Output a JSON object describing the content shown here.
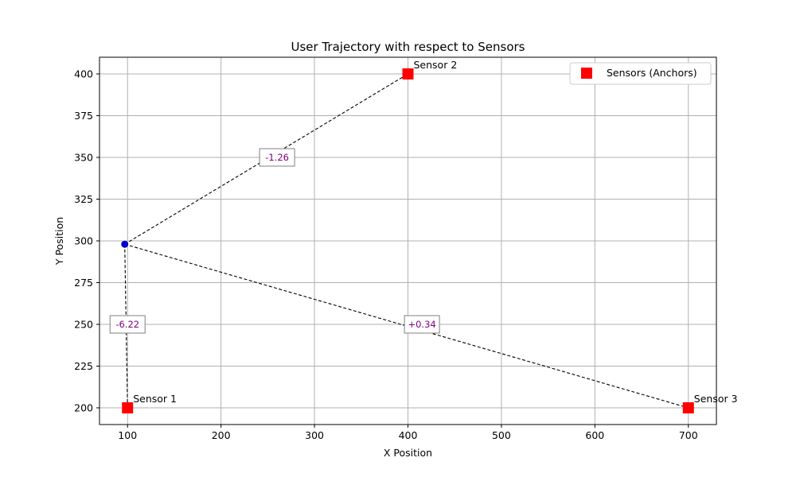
{
  "chart_data": {
    "type": "scatter",
    "title": "User Trajectory with respect to Sensors",
    "xlabel": "X Position",
    "ylabel": "Y Position",
    "xlim": [
      70,
      730
    ],
    "ylim": [
      190,
      410
    ],
    "xticks": [
      100,
      200,
      300,
      400,
      500,
      600,
      700
    ],
    "yticks": [
      200,
      225,
      250,
      275,
      300,
      325,
      350,
      375,
      400
    ],
    "grid": true,
    "legend_position": "top-right",
    "sensors": {
      "name": "Sensors (Anchors)",
      "color": "#ff0000",
      "marker": "square",
      "points": [
        {
          "label": "Sensor 1",
          "x": 100,
          "y": 200
        },
        {
          "label": "Sensor 2",
          "x": 400,
          "y": 400
        },
        {
          "label": "Sensor 3",
          "x": 700,
          "y": 200
        }
      ]
    },
    "user": {
      "color": "#0000cc",
      "x": 97,
      "y": 298
    },
    "connections": [
      {
        "to": "Sensor 1",
        "label": "-6.22",
        "label_x": 100,
        "label_y": 250
      },
      {
        "to": "Sensor 2",
        "label": "-1.26",
        "label_x": 260,
        "label_y": 350
      },
      {
        "to": "Sensor 3",
        "label": "+0.34",
        "label_x": 415,
        "label_y": 250
      }
    ],
    "connection_label_color": "#800080"
  }
}
